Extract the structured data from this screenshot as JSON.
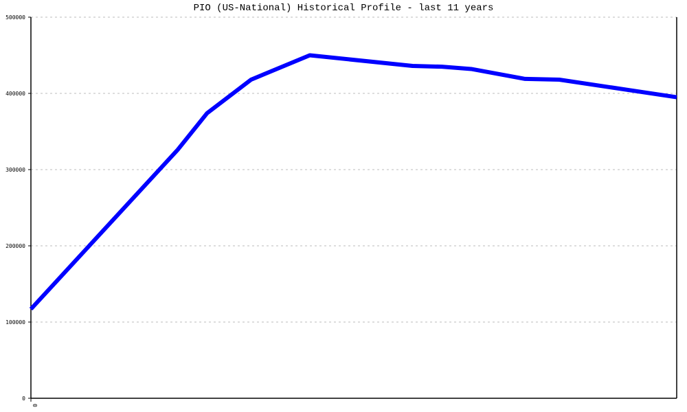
{
  "chart_data": {
    "type": "line",
    "title": "PIO (US-National) Historical Profile - last 11 years",
    "xlabel": "",
    "ylabel": "",
    "ylim": [
      0,
      500000
    ],
    "xlim": [
      0,
      132
    ],
    "y_ticks": [
      "0",
      "100000",
      "200000",
      "300000",
      "400000",
      "500000"
    ],
    "x_ticks": [
      "0"
    ],
    "grid": "horizontal dotted",
    "series": [
      {
        "color": "#0000ff",
        "x": [
          0,
          30,
          36,
          45,
          57,
          78,
          84,
          90,
          101,
          108,
          132
        ],
        "values": [
          117000,
          326000,
          374000,
          418000,
          450000,
          436000,
          435000,
          432000,
          419000,
          418000,
          395000
        ]
      }
    ]
  }
}
